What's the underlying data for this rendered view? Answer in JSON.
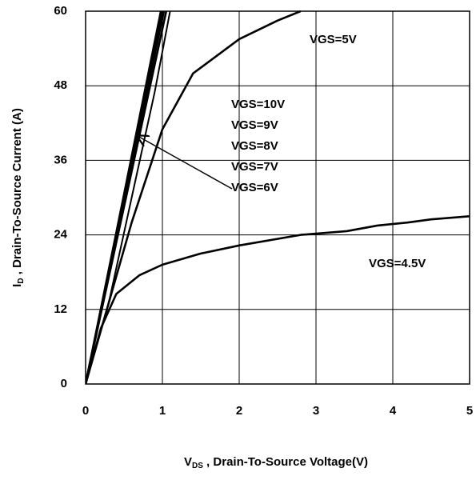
{
  "chart_data": {
    "type": "line",
    "xlabel": {
      "symbol": "V",
      "subscript": "DS",
      "text": " , Drain-To-Source Voltage(V)"
    },
    "ylabel": {
      "symbol": "I",
      "subscript": "D",
      "text": " , Drain-To-Source Current (A)"
    },
    "xlim": [
      0,
      5
    ],
    "xticks": [
      0,
      1,
      2,
      3,
      4,
      5
    ],
    "ylim": [
      0,
      60
    ],
    "yticks": [
      0,
      12,
      24,
      36,
      48,
      60
    ],
    "grid": true,
    "series": [
      {
        "name": "VGS=10V",
        "color": "#000000",
        "x": [
          0,
          0.5,
          0.98
        ],
        "values": [
          0,
          30.5,
          60
        ]
      },
      {
        "name": "VGS=9V",
        "color": "#000000",
        "x": [
          0,
          0.5,
          1.0
        ],
        "values": [
          0,
          30,
          60
        ]
      },
      {
        "name": "VGS=8V",
        "color": "#000000",
        "x": [
          0,
          0.5,
          1.02
        ],
        "values": [
          0,
          29.5,
          60
        ]
      },
      {
        "name": "VGS=7V",
        "color": "#000000",
        "x": [
          0,
          0.5,
          1.05
        ],
        "values": [
          0,
          28.5,
          60
        ]
      },
      {
        "name": "VGS=6V",
        "color": "#000000",
        "x": [
          0,
          0.3,
          0.6,
          0.9,
          1.1
        ],
        "values": [
          0,
          13,
          30,
          47,
          60
        ]
      },
      {
        "name": "VGS=5V",
        "color": "#000000",
        "x": [
          0,
          0.3,
          0.6,
          1.0,
          1.4,
          2.0,
          2.5,
          2.8
        ],
        "values": [
          0,
          13,
          26,
          41,
          50,
          55.5,
          58.5,
          60
        ]
      },
      {
        "name": "VGS=4.5V",
        "color": "#000000",
        "x": [
          0,
          0.2,
          0.4,
          0.7,
          1.0,
          1.5,
          2.0,
          2.8,
          3.4,
          3.8,
          4.2,
          4.5,
          5.0
        ],
        "values": [
          0,
          9,
          14.5,
          17.5,
          19.2,
          21,
          22.3,
          24,
          24.6,
          25.5,
          26,
          26.5,
          27
        ]
      }
    ]
  }
}
